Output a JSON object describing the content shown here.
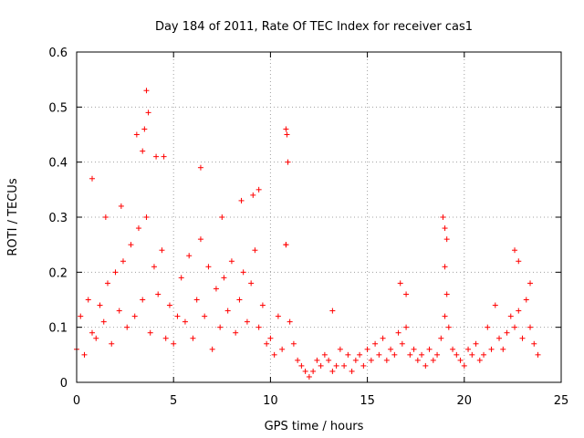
{
  "chart_data": {
    "type": "scatter",
    "title": "Day 184 of 2011, Rate Of TEC Index for receiver cas1",
    "xlabel": "GPS time / hours",
    "ylabel": "ROTI / TECUs",
    "xlim": [
      0,
      25
    ],
    "ylim": [
      0,
      0.6
    ],
    "xticks": [
      0,
      5,
      10,
      15,
      20,
      25
    ],
    "xtick_labels": [
      "0",
      "5",
      "10",
      "15",
      "20",
      "25"
    ],
    "yticks": [
      0,
      0.1,
      0.2,
      0.3,
      0.4,
      0.5,
      0.6
    ],
    "ytick_labels": [
      "0",
      "0.1",
      "0.2",
      "0.3",
      "0.4",
      "0.5",
      "0.6"
    ],
    "grid": true,
    "marker": "+",
    "color": "#ff0000",
    "series": [
      {
        "name": "ROTI",
        "x": [
          0.0,
          0.2,
          0.4,
          0.6,
          0.8,
          1.0,
          1.2,
          1.4,
          1.6,
          1.8,
          2.0,
          2.2,
          2.4,
          2.6,
          2.8,
          3.0,
          3.2,
          3.4,
          3.6,
          3.8,
          4.0,
          4.2,
          4.4,
          4.6,
          4.8,
          5.0,
          5.2,
          5.4,
          5.6,
          5.8,
          6.0,
          6.2,
          6.4,
          6.6,
          6.8,
          7.0,
          7.2,
          7.4,
          7.6,
          7.8,
          8.0,
          8.2,
          8.4,
          8.6,
          8.8,
          9.0,
          9.2,
          9.4,
          9.6,
          9.8,
          10.0,
          10.2,
          10.4,
          10.6,
          10.8,
          11.0,
          11.2,
          11.4,
          11.6,
          11.8,
          12.0,
          12.2,
          12.4,
          12.6,
          12.8,
          13.0,
          13.2,
          13.4,
          13.6,
          13.8,
          14.0,
          14.2,
          14.4,
          14.6,
          14.8,
          15.0,
          15.2,
          15.4,
          15.6,
          15.8,
          16.0,
          16.2,
          16.4,
          16.6,
          16.8,
          17.0,
          17.2,
          17.4,
          17.6,
          17.8,
          18.0,
          18.2,
          18.4,
          18.6,
          18.8,
          19.0,
          19.2,
          19.4,
          19.6,
          19.8,
          20.0,
          20.2,
          20.4,
          20.6,
          20.8,
          21.0,
          21.2,
          21.4,
          21.6,
          21.8,
          22.0,
          22.2,
          22.4,
          22.6,
          22.8,
          23.0,
          23.2,
          23.4,
          23.6,
          23.8,
          0.8,
          1.5,
          2.3,
          3.1,
          3.4,
          3.5,
          3.6,
          3.7,
          4.1,
          4.5,
          6.4,
          7.5,
          8.5,
          9.4,
          10.8,
          10.85,
          10.9,
          10.8,
          16.7,
          17.0,
          18.9,
          19.0,
          19.1,
          19.0,
          19.1,
          22.6,
          22.8,
          23.4,
          13.2,
          9.1
        ],
        "y": [
          0.06,
          0.12,
          0.05,
          0.15,
          0.09,
          0.08,
          0.14,
          0.11,
          0.18,
          0.07,
          0.2,
          0.13,
          0.22,
          0.1,
          0.25,
          0.12,
          0.28,
          0.15,
          0.3,
          0.09,
          0.21,
          0.16,
          0.24,
          0.08,
          0.14,
          0.07,
          0.12,
          0.19,
          0.11,
          0.23,
          0.08,
          0.15,
          0.26,
          0.12,
          0.21,
          0.06,
          0.17,
          0.1,
          0.19,
          0.13,
          0.22,
          0.09,
          0.15,
          0.2,
          0.11,
          0.18,
          0.24,
          0.1,
          0.14,
          0.07,
          0.08,
          0.05,
          0.12,
          0.06,
          0.25,
          0.11,
          0.07,
          0.04,
          0.03,
          0.02,
          0.01,
          0.02,
          0.04,
          0.03,
          0.05,
          0.04,
          0.02,
          0.03,
          0.06,
          0.03,
          0.05,
          0.02,
          0.04,
          0.05,
          0.03,
          0.06,
          0.04,
          0.07,
          0.05,
          0.08,
          0.04,
          0.06,
          0.05,
          0.09,
          0.07,
          0.1,
          0.05,
          0.06,
          0.04,
          0.05,
          0.03,
          0.06,
          0.04,
          0.05,
          0.08,
          0.12,
          0.1,
          0.06,
          0.05,
          0.04,
          0.03,
          0.06,
          0.05,
          0.07,
          0.04,
          0.05,
          0.1,
          0.06,
          0.14,
          0.08,
          0.06,
          0.09,
          0.12,
          0.1,
          0.13,
          0.08,
          0.15,
          0.1,
          0.07,
          0.05,
          0.37,
          0.3,
          0.32,
          0.45,
          0.42,
          0.46,
          0.53,
          0.49,
          0.41,
          0.41,
          0.39,
          0.3,
          0.33,
          0.35,
          0.46,
          0.45,
          0.4,
          0.25,
          0.18,
          0.16,
          0.3,
          0.28,
          0.26,
          0.21,
          0.16,
          0.24,
          0.22,
          0.18,
          0.13,
          0.34
        ]
      }
    ]
  }
}
